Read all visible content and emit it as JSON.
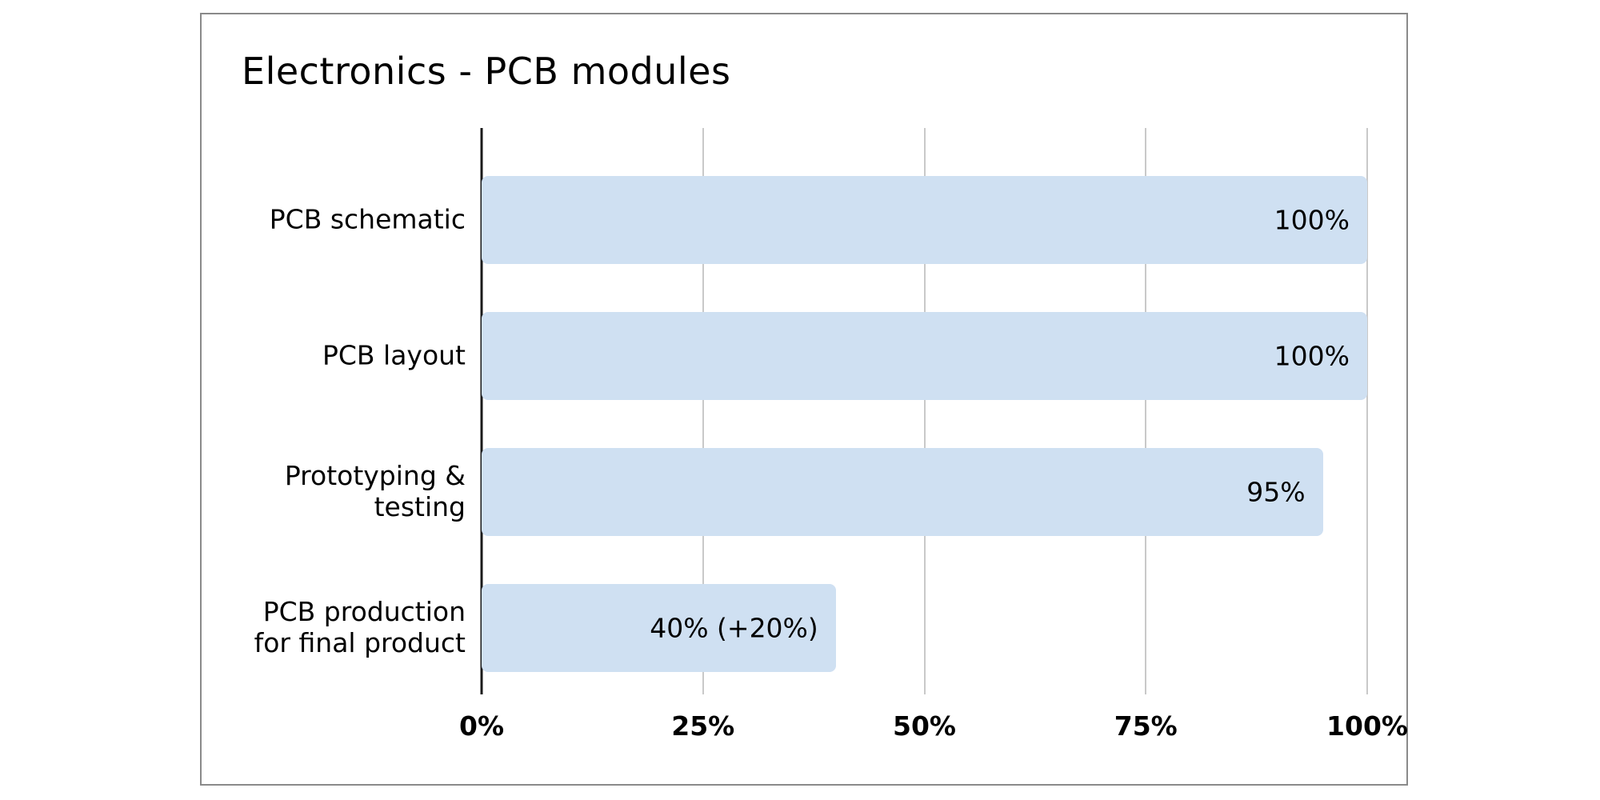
{
  "chart_data": {
    "type": "bar",
    "orientation": "horizontal",
    "title": "Electronics - PCB modules",
    "categories": [
      "PCB schematic",
      "PCB layout",
      "Prototyping & testing",
      "PCB production for final product"
    ],
    "category_label_lines": [
      [
        "PCB schematic"
      ],
      [
        "PCB layout"
      ],
      [
        "Prototyping &",
        "testing"
      ],
      [
        "PCB production",
        "for final product"
      ]
    ],
    "values": [
      100,
      100,
      95,
      40
    ],
    "value_labels": [
      "100%",
      "100%",
      "95%",
      "40% (+20%)"
    ],
    "xlim": [
      0,
      100
    ],
    "x_ticks": [
      {
        "value": 0,
        "label": "0%"
      },
      {
        "value": 25,
        "label": "25%"
      },
      {
        "value": 50,
        "label": "50%"
      },
      {
        "value": 75,
        "label": "75%"
      },
      {
        "value": 100,
        "label": "100%"
      }
    ],
    "grid": true,
    "legend": false,
    "colors": {
      "bar_fill": "#cfe0f2",
      "gridline": "#c9c9c9",
      "axis": "#1a1a1a",
      "frame_border": "#8a8a8a",
      "text": "#000000",
      "background": "#ffffff"
    }
  }
}
